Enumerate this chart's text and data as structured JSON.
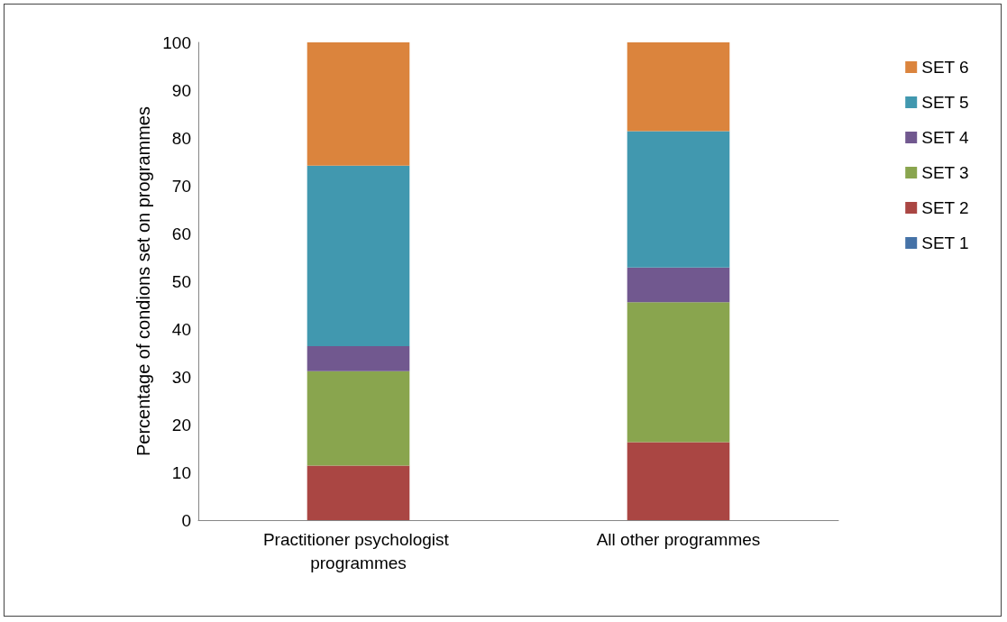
{
  "chart_data": {
    "type": "bar",
    "stacked": true,
    "ylabel": "Percentage of condions set on programmes",
    "categories": [
      "Practitioner psychologist programmes",
      "All other programmes"
    ],
    "series": [
      {
        "name": "SET 1",
        "color": "#4572a7",
        "values": [
          0,
          0
        ]
      },
      {
        "name": "SET 2",
        "color": "#aa4643",
        "values": [
          11.4,
          16.3
        ]
      },
      {
        "name": "SET 3",
        "color": "#89a54e",
        "values": [
          19.8,
          29.3
        ]
      },
      {
        "name": "SET 4",
        "color": "#71588f",
        "values": [
          5.2,
          7.3
        ]
      },
      {
        "name": "SET 5",
        "color": "#4198af",
        "values": [
          37.8,
          28.5
        ]
      },
      {
        "name": "SET 6",
        "color": "#db843d",
        "values": [
          25.8,
          18.6
        ]
      }
    ],
    "ylim": [
      0,
      100
    ],
    "yticks": [
      0,
      10,
      20,
      30,
      40,
      50,
      60,
      70,
      80,
      90,
      100
    ],
    "grid": false,
    "legend": "right"
  }
}
